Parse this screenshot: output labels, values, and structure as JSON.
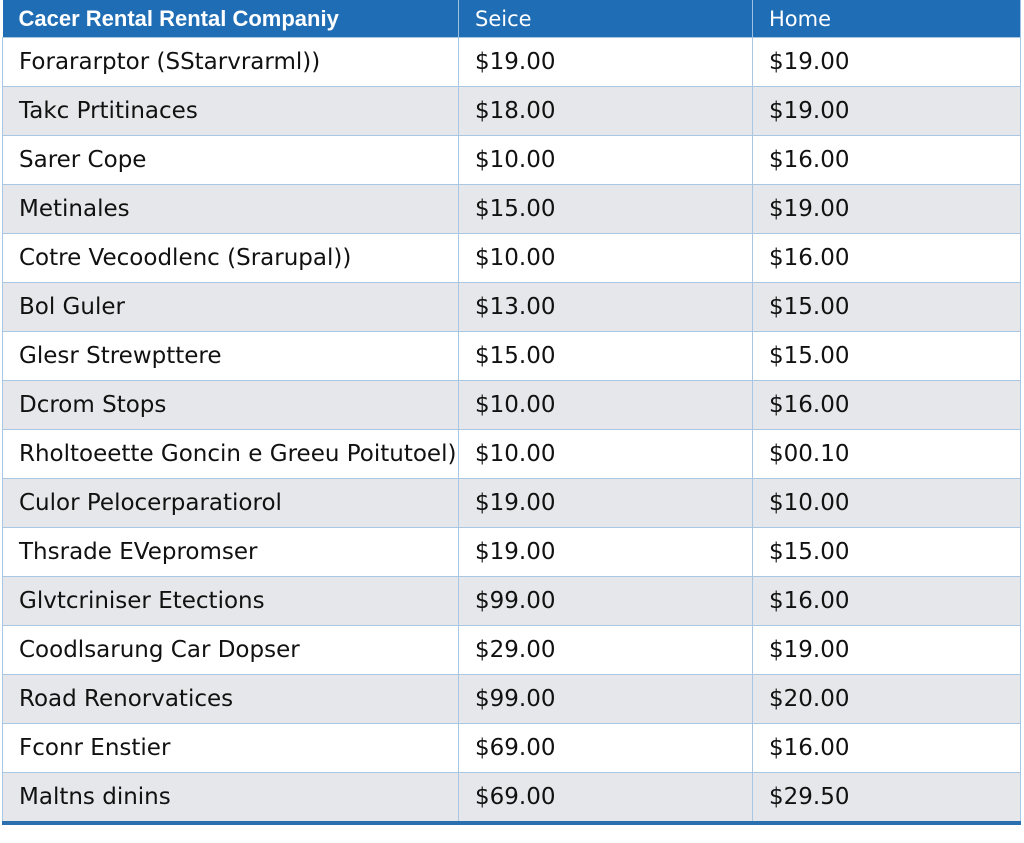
{
  "table": {
    "header": [
      "Cacer Rental Rental Companiy",
      "Seice",
      "Home"
    ],
    "rows": [
      [
        "Forararptor (SStarvrarml))",
        "$19.00",
        "$19.00"
      ],
      [
        "Takc Prtitinaces",
        "$18.00",
        "$19.00"
      ],
      [
        "Sarer Cope",
        "$10.00",
        "$16.00"
      ],
      [
        "Metinales",
        "$15.00",
        "$19.00"
      ],
      [
        "Cotre Vecoodlenc (Srarupal))",
        "$10.00",
        "$16.00"
      ],
      [
        "Bol Guler",
        "$13.00",
        "$15.00"
      ],
      [
        "Glesr Strewpttere",
        "$15.00",
        "$15.00"
      ],
      [
        "Dcrom Stops",
        "$10.00",
        "$16.00"
      ],
      [
        "Rholtoeette Goncin e Greeu Poitutoel)",
        "$10.00",
        "$00.10"
      ],
      [
        "Culor Pelocerparatiorol",
        "$19.00",
        "$10.00"
      ],
      [
        "Thsrade EVepromser",
        "$19.00",
        "$15.00"
      ],
      [
        "Glvtcriniser Etections",
        "$99.00",
        "$16.00"
      ],
      [
        "Coodlsarung Car Dopser",
        "$29.00",
        "$19.00"
      ],
      [
        "Road Renorvatices",
        "$99.00",
        "$20.00"
      ],
      [
        "Fconr Enstier",
        "$69.00",
        "$16.00"
      ],
      [
        "Maltns dinins",
        "$69.00",
        "$29.50"
      ]
    ]
  }
}
